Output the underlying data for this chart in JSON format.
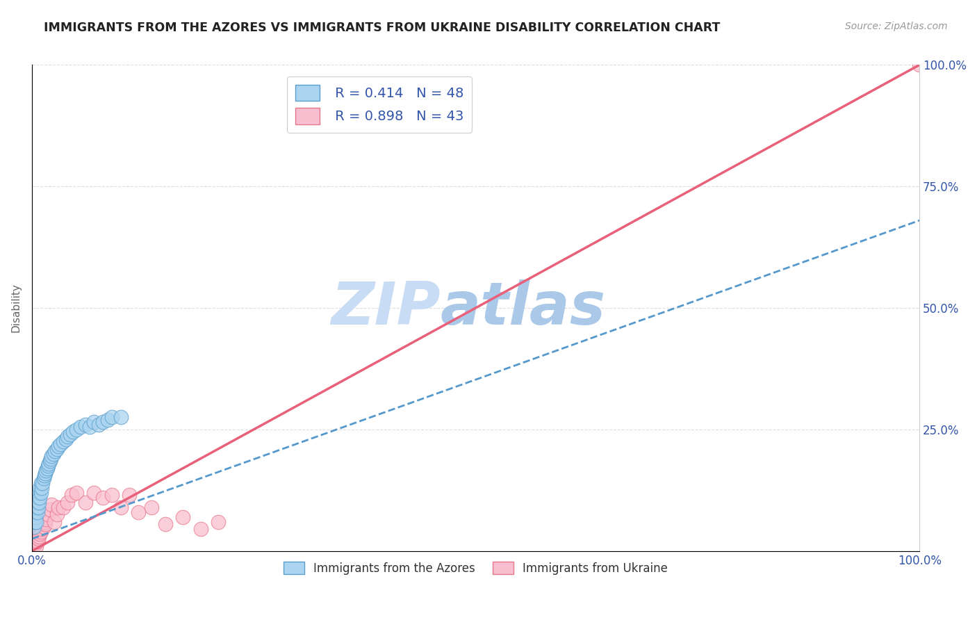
{
  "title": "IMMIGRANTS FROM THE AZORES VS IMMIGRANTS FROM UKRAINE DISABILITY CORRELATION CHART",
  "source": "Source: ZipAtlas.com",
  "ylabel": "Disability",
  "xlim": [
    0,
    1
  ],
  "ylim": [
    0,
    1
  ],
  "xticks": [
    0,
    0.25,
    0.5,
    0.75,
    1.0
  ],
  "yticks": [
    0,
    0.25,
    0.5,
    0.75,
    1.0
  ],
  "xticklabels": [
    "0.0%",
    "",
    "",
    "",
    "100.0%"
  ],
  "right_yticklabels": [
    "",
    "25.0%",
    "50.0%",
    "75.0%",
    "100.0%"
  ],
  "R_azores": 0.414,
  "N_azores": 48,
  "R_ukraine": 0.898,
  "N_ukraine": 43,
  "color_azores_fill": "#aad4f0",
  "color_ukraine_fill": "#f9bfd0",
  "color_azores_edge": "#5b9fcc",
  "color_ukraine_edge": "#e8788a",
  "color_azores_line": "#5599cc",
  "color_ukraine_line": "#e8607a",
  "legend_text_color": "#3355aa",
  "watermark_zipleft": "ZIP",
  "watermark_atlas": "atlas",
  "watermark_color_left": "#c8ddf5",
  "watermark_color_right": "#aac8e8",
  "background_color": "#ffffff",
  "grid_color": "#dddddd",
  "azores_x": [
    0.002,
    0.003,
    0.004,
    0.004,
    0.005,
    0.005,
    0.006,
    0.006,
    0.007,
    0.007,
    0.008,
    0.008,
    0.009,
    0.009,
    0.01,
    0.01,
    0.011,
    0.012,
    0.013,
    0.014,
    0.015,
    0.016,
    0.017,
    0.018,
    0.019,
    0.02,
    0.021,
    0.022,
    0.024,
    0.026,
    0.028,
    0.03,
    0.032,
    0.035,
    0.038,
    0.04,
    0.043,
    0.046,
    0.05,
    0.055,
    0.06,
    0.065,
    0.07,
    0.075,
    0.08,
    0.085,
    0.09,
    0.1
  ],
  "azores_y": [
    0.05,
    0.06,
    0.07,
    0.08,
    0.06,
    0.09,
    0.08,
    0.1,
    0.09,
    0.11,
    0.1,
    0.12,
    0.11,
    0.13,
    0.12,
    0.14,
    0.13,
    0.14,
    0.15,
    0.155,
    0.16,
    0.165,
    0.17,
    0.175,
    0.18,
    0.185,
    0.19,
    0.195,
    0.2,
    0.205,
    0.21,
    0.215,
    0.22,
    0.225,
    0.23,
    0.235,
    0.24,
    0.245,
    0.25,
    0.255,
    0.26,
    0.255,
    0.265,
    0.26,
    0.265,
    0.27,
    0.275,
    0.275
  ],
  "ukraine_x": [
    0.002,
    0.003,
    0.004,
    0.004,
    0.005,
    0.005,
    0.006,
    0.006,
    0.007,
    0.007,
    0.008,
    0.008,
    0.009,
    0.01,
    0.011,
    0.012,
    0.013,
    0.014,
    0.015,
    0.016,
    0.018,
    0.02,
    0.022,
    0.025,
    0.028,
    0.03,
    0.035,
    0.04,
    0.045,
    0.05,
    0.06,
    0.07,
    0.08,
    0.09,
    0.1,
    0.11,
    0.12,
    0.135,
    0.15,
    0.17,
    0.19,
    0.21,
    1.0
  ],
  "ukraine_y": [
    0.01,
    0.015,
    0.02,
    0.025,
    0.01,
    0.03,
    0.02,
    0.035,
    0.025,
    0.04,
    0.03,
    0.045,
    0.035,
    0.04,
    0.045,
    0.055,
    0.05,
    0.06,
    0.055,
    0.065,
    0.075,
    0.085,
    0.095,
    0.06,
    0.075,
    0.09,
    0.09,
    0.1,
    0.115,
    0.12,
    0.1,
    0.12,
    0.11,
    0.115,
    0.09,
    0.115,
    0.08,
    0.09,
    0.055,
    0.07,
    0.045,
    0.06,
    1.0
  ],
  "az_line_x0": 0.0,
  "az_line_y0": 0.025,
  "az_line_x1": 1.0,
  "az_line_y1": 0.68,
  "uk_line_x0": 0.0,
  "uk_line_y0": 0.0,
  "uk_line_x1": 1.0,
  "uk_line_y1": 1.0
}
